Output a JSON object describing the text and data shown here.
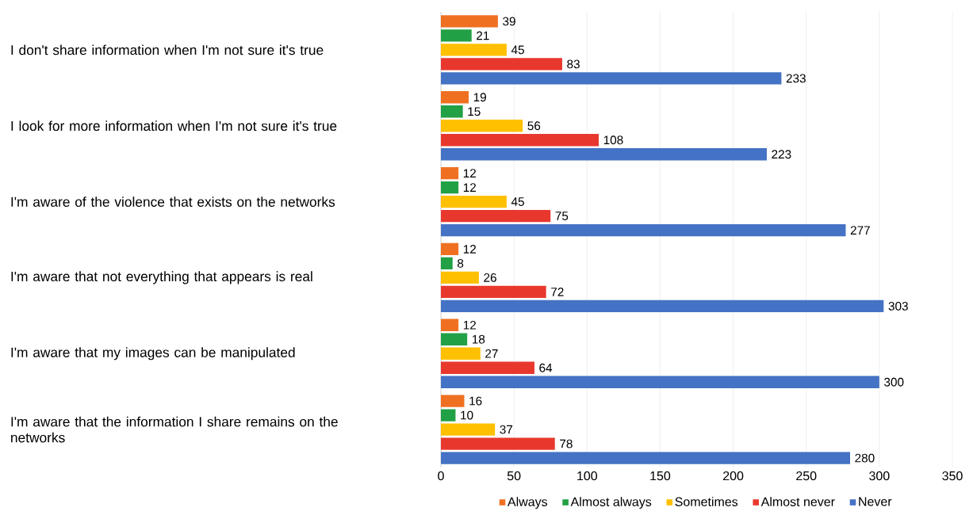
{
  "chart_data": {
    "type": "bar",
    "orientation": "horizontal",
    "categories": [
      "I don't share information when I'm not sure it's true",
      "I look for more information when I'm not sure it's true",
      "I'm aware of the violence that exists on the networks",
      "I'm aware that not everything that appears is real",
      "I'm aware that my images can be manipulated",
      "I'm aware that the information I share remains on the networks"
    ],
    "series": [
      {
        "name": "Always",
        "color": "#f07022",
        "values": [
          39,
          19,
          12,
          12,
          12,
          16
        ]
      },
      {
        "name": "Almost always",
        "color": "#22a045",
        "values": [
          21,
          15,
          12,
          8,
          18,
          10
        ]
      },
      {
        "name": "Sometimes",
        "color": "#ffc000",
        "values": [
          45,
          56,
          45,
          26,
          27,
          37
        ]
      },
      {
        "name": "Almost never",
        "color": "#e8382e",
        "values": [
          83,
          108,
          75,
          72,
          64,
          78
        ]
      },
      {
        "name": "Never",
        "color": "#4472c4",
        "values": [
          233,
          223,
          277,
          303,
          300,
          280
        ]
      }
    ],
    "xlim": [
      0,
      350
    ],
    "xticks": [
      0,
      50,
      100,
      150,
      200,
      250,
      300,
      350
    ],
    "grid": "x",
    "legend": "bottom",
    "data_labels": true
  }
}
